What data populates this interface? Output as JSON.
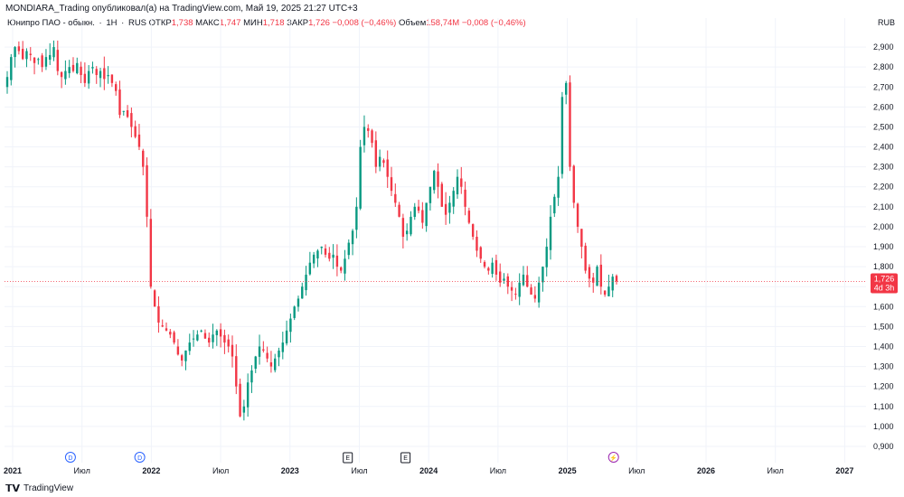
{
  "header": {
    "publisher_line": "MONDIARA_Trading опубликовал(а) на TradingView.com, Май 19, 2025 21:27 UTC+3"
  },
  "legend": {
    "symbol": "Юнипро ПАО - обыкн.",
    "interval": "1Н",
    "exchange": "RUS",
    "open_label": "ОТКР",
    "open_value": "1,738",
    "high_label": "МАКС",
    "high_value": "1,747",
    "low_label": "МИН",
    "low_value": "1,718",
    "close_label": "ЗАКР",
    "close_value": "1,726",
    "change": "−0,008 (−0,46%)",
    "volume_label": "Объем",
    "volume_value": "158,74M",
    "volume_change": "−0,008 (−0,46%)"
  },
  "price_tag": {
    "price": "1,726",
    "countdown": "4d 3h"
  },
  "footer": {
    "brand": "TradingView"
  },
  "colors": {
    "up": "#089981",
    "down": "#f23645",
    "grid": "#f0f3fa",
    "axis_text": "#131722"
  },
  "events": [
    {
      "x": "2021-06",
      "symbol": "D",
      "kind": "dividend"
    },
    {
      "x": "2021-12",
      "symbol": "D",
      "kind": "dividend"
    },
    {
      "x": "2023-06",
      "symbol": "E",
      "kind": "earnings"
    },
    {
      "x": "2023-11",
      "symbol": "E",
      "kind": "earnings"
    },
    {
      "x": "2025-05",
      "symbol": "⚡",
      "kind": "event"
    }
  ],
  "chart_data": {
    "type": "candlestick",
    "currency": "RUB",
    "y_ticks": [
      "2,900",
      "2,800",
      "2,700",
      "2,600",
      "2,500",
      "2,400",
      "2,300",
      "2,200",
      "2,100",
      "2,000",
      "1,900",
      "1,800",
      "1,700",
      "1,600",
      "1,500",
      "1,400",
      "1,300",
      "1,200",
      "1,100",
      "1,000",
      "0,900"
    ],
    "x_ticks": [
      "2021",
      "Июл",
      "2022",
      "Июл",
      "2023",
      "Июл",
      "2024",
      "Июл",
      "2025",
      "Июл",
      "2026",
      "Июл",
      "2027"
    ],
    "ylim": [
      0.85,
      3.0
    ],
    "grid": true,
    "last_price": 1.726,
    "series": [
      {
        "name": "close",
        "values": [
          2.75,
          2.85,
          2.9,
          2.88,
          2.84,
          2.88,
          2.86,
          2.82,
          2.84,
          2.8,
          2.85,
          2.86,
          2.9,
          2.78,
          2.75,
          2.78,
          2.8,
          2.78,
          2.82,
          2.76,
          2.72,
          2.78,
          2.8,
          2.76,
          2.78,
          2.74,
          2.76,
          2.72,
          2.68,
          2.56,
          2.58,
          2.55,
          2.5,
          2.45,
          2.4,
          2.3,
          2.05,
          1.7,
          1.6,
          1.52,
          1.5,
          1.48,
          1.46,
          1.42,
          1.36,
          1.33,
          1.38,
          1.42,
          1.44,
          1.46,
          1.48,
          1.44,
          1.42,
          1.46,
          1.48,
          1.45,
          1.42,
          1.4,
          1.35,
          1.2,
          1.05,
          1.1,
          1.22,
          1.28,
          1.35,
          1.4,
          1.38,
          1.34,
          1.3,
          1.34,
          1.38,
          1.42,
          1.48,
          1.54,
          1.6,
          1.64,
          1.7,
          1.76,
          1.82,
          1.86,
          1.88,
          1.9,
          1.86,
          1.84,
          1.86,
          1.8,
          1.78,
          1.84,
          1.92,
          1.98,
          2.1,
          2.4,
          2.5,
          2.48,
          2.42,
          2.3,
          2.35,
          2.32,
          2.25,
          2.18,
          2.12,
          2.05,
          1.95,
          1.98,
          2.05,
          2.1,
          2.08,
          2.02,
          2.12,
          2.2,
          2.28,
          2.2,
          2.1,
          2.06,
          2.12,
          2.18,
          2.25,
          2.2,
          2.1,
          2.02,
          1.95,
          1.88,
          1.84,
          1.8,
          1.78,
          1.82,
          1.76,
          1.72,
          1.74,
          1.7,
          1.68,
          1.66,
          1.72,
          1.76,
          1.7,
          1.66,
          1.64,
          1.72,
          1.8,
          1.9,
          2.05,
          2.15,
          2.25,
          2.65,
          2.72,
          2.3,
          2.12,
          2.0,
          1.9,
          1.78,
          1.74,
          1.72,
          1.8,
          1.7,
          1.66,
          1.7,
          1.75,
          1.726
        ]
      }
    ]
  }
}
